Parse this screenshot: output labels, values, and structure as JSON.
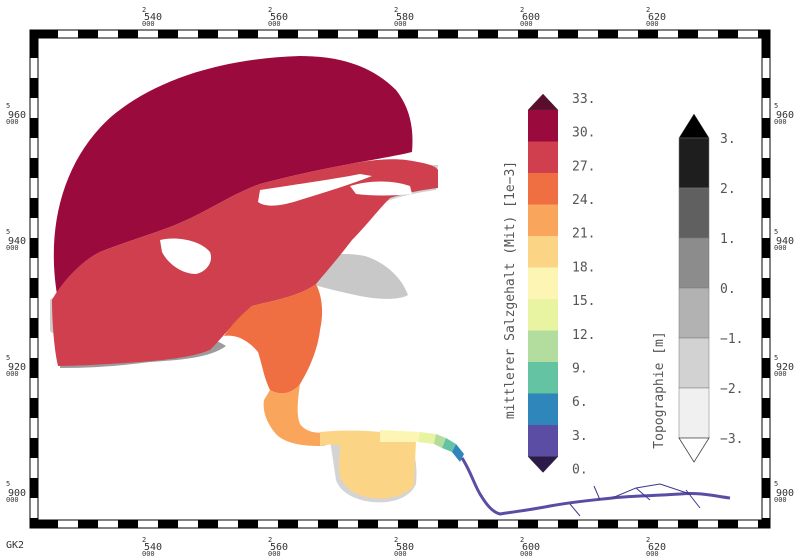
{
  "crs_label": "GK2",
  "frame": {
    "x_ticks": [
      {
        "prefix": "2",
        "main": "540",
        "suffix": "000"
      },
      {
        "prefix": "2",
        "main": "560",
        "suffix": "000"
      },
      {
        "prefix": "2",
        "main": "580",
        "suffix": "000"
      },
      {
        "prefix": "2",
        "main": "600",
        "suffix": "000"
      },
      {
        "prefix": "2",
        "main": "620",
        "suffix": "000"
      }
    ],
    "y_ticks": [
      {
        "prefix": "5",
        "main": "960",
        "suffix": "000"
      },
      {
        "prefix": "5",
        "main": "940",
        "suffix": "000"
      },
      {
        "prefix": "5",
        "main": "920",
        "suffix": "000"
      },
      {
        "prefix": "5",
        "main": "900",
        "suffix": "000"
      }
    ]
  },
  "salinity_legend": {
    "title": "mittlerer Salzgehalt (Mit) [1e−3]",
    "labels": [
      "33.",
      "30.",
      "27.",
      "24.",
      "21.",
      "18.",
      "15.",
      "12.",
      "9.",
      "6.",
      "3.",
      "0."
    ],
    "colors": [
      "#9b0a3c",
      "#cf3f4d",
      "#ef6e42",
      "#f9a65c",
      "#fbd585",
      "#fdf5b4",
      "#e8f4a2",
      "#b3dc9f",
      "#64c3a3",
      "#2f86ba",
      "#5a4da3"
    ],
    "over_color": "#5a0d2c",
    "under_color": "#2c1a4a"
  },
  "topo_legend": {
    "title": "Topographie [m]",
    "labels": [
      "3.",
      "2.",
      "1.",
      "0.",
      "−1.",
      "−2.",
      "−3."
    ],
    "colors": [
      "#1e1e1e",
      "#606060",
      "#8c8c8c",
      "#b2b2b2",
      "#d2d2d2",
      "#f0f0f0"
    ],
    "over_color": "#000000",
    "under_color": "#ffffff"
  }
}
